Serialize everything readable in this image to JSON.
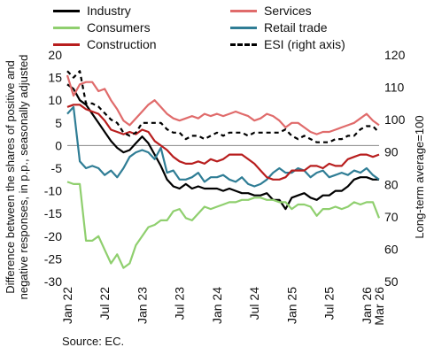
{
  "chart_data": {
    "type": "line",
    "source": "Source: EC.",
    "ylabel_left": "Difference between the shares of positive and negative responses, in p.p., seasonally adjusted",
    "ylabel_right": "Long-term average=100",
    "yleft": {
      "min": -30,
      "max": 20,
      "ticks": [
        -30,
        -25,
        -20,
        -15,
        -10,
        -5,
        0,
        5,
        10,
        15,
        20
      ]
    },
    "yright": {
      "min": 50,
      "max": 120,
      "ticks": [
        50,
        60,
        70,
        80,
        90,
        100,
        110,
        120
      ]
    },
    "x_tick_labels": [
      "Jan 22",
      "Jul 22",
      "Jan 23",
      "Jul 23",
      "Jan 24",
      "Jul 24",
      "Jan 25",
      "Jul 25",
      "Jan 26",
      "Mar 26"
    ],
    "x_tick_index": [
      0,
      6,
      12,
      18,
      24,
      30,
      36,
      42,
      48,
      50
    ],
    "grid": false,
    "legend_position": "top",
    "series": [
      {
        "name": "Industry",
        "axis": "left",
        "color": "#000000",
        "dash": "",
        "values": [
          13.5,
          12.5,
          10,
          9,
          7,
          5,
          3,
          1,
          -0.5,
          -1.5,
          -1,
          0.5,
          2,
          0.5,
          -2,
          -4.5,
          -7.5,
          -9,
          -9.5,
          -8.5,
          -9.5,
          -9,
          -9.5,
          -9.5,
          -9.5,
          -10,
          -9.5,
          -10,
          -10.5,
          -10.5,
          -11,
          -11,
          -10.5,
          -12,
          -12,
          -14,
          -11.5,
          -11,
          -10.5,
          -11.5,
          -12,
          -11,
          -11,
          -10,
          -10,
          -9,
          -7.5,
          -7,
          -7,
          -7.5,
          -7.5
        ]
      },
      {
        "name": "Services",
        "axis": "left",
        "color": "#e06b6b",
        "dash": "",
        "values": [
          15.5,
          11,
          13.5,
          14,
          14,
          12,
          12.5,
          10,
          8,
          5.5,
          4.5,
          6,
          7.5,
          9,
          10,
          8.5,
          7,
          6,
          5.5,
          6,
          6.5,
          6,
          7,
          6.5,
          7,
          6.5,
          7,
          7.5,
          7,
          6.5,
          5.5,
          6,
          7,
          6.5,
          5.5,
          4,
          5,
          5,
          4,
          3,
          2.5,
          3,
          3,
          3.5,
          4,
          4.5,
          5,
          6,
          7,
          5.5,
          4.5
        ]
      },
      {
        "name": "Consumers",
        "axis": "left",
        "color": "#8fcf6e",
        "dash": "",
        "values": [
          -8,
          -8.5,
          -8.5,
          -21,
          -21,
          -20,
          -23,
          -26,
          -24,
          -27,
          -26,
          -22,
          -20,
          -18,
          -17.5,
          -16.5,
          -16.5,
          -14.5,
          -14,
          -16,
          -16.5,
          -15,
          -13.5,
          -14,
          -13.5,
          -13,
          -12.5,
          -12.5,
          -12,
          -12,
          -11.5,
          -11.5,
          -12,
          -12,
          -12.5,
          -12.5,
          -14,
          -13,
          -13,
          -13.5,
          -15.5,
          -14,
          -14,
          -13.5,
          -14,
          -13.5,
          -12.5,
          -13,
          -12.5,
          -12.5,
          -16
        ]
      },
      {
        "name": "Retail trade",
        "axis": "left",
        "color": "#2f7d95",
        "dash": "",
        "values": [
          7,
          8.5,
          -3.5,
          -5,
          -4.5,
          -5,
          -6.5,
          -5.5,
          -7,
          -5,
          -2.5,
          -1.5,
          -1,
          -1.5,
          -3,
          -0.5,
          -6,
          -5.5,
          -7.5,
          -7.5,
          -7,
          -6,
          -8,
          -7,
          -7,
          -6.5,
          -7.5,
          -8,
          -7,
          -8.5,
          -9,
          -8.5,
          -7.5,
          -6,
          -5,
          -6,
          -6,
          -5,
          -5.5,
          -7,
          -6,
          -5.5,
          -7,
          -6.5,
          -6,
          -6.5,
          -5.5,
          -6,
          -5,
          -6.5,
          -7.5
        ]
      },
      {
        "name": "Construction",
        "axis": "left",
        "color": "#b81e1e",
        "dash": "",
        "values": [
          8.5,
          9,
          9,
          8,
          7.5,
          7,
          5.5,
          3.5,
          3,
          2.5,
          3,
          2.5,
          3.5,
          3,
          1,
          0,
          -1,
          -2.5,
          -3.5,
          -4,
          -4,
          -3.5,
          -4,
          -3,
          -3.5,
          -3,
          -2,
          -2,
          -2,
          -3,
          -4,
          -5.5,
          -7,
          -7.5,
          -7.5,
          -7,
          -5.5,
          -5.5,
          -5.5,
          -4.5,
          -4.5,
          -5,
          -4,
          -4.5,
          -4.5,
          -3,
          -2.5,
          -2,
          -2,
          -2.5,
          -2
        ]
      },
      {
        "name": "ESI (right axis)",
        "axis": "right",
        "color": "#000000",
        "dash": "5,4",
        "values": [
          115,
          113,
          115,
          105,
          105,
          104,
          102,
          100,
          99,
          96,
          95,
          96,
          99,
          99,
          99,
          99,
          97,
          96,
          96,
          94,
          95,
          95,
          94,
          95,
          96,
          95,
          96,
          96,
          96,
          95,
          96,
          96,
          96,
          96,
          96,
          97,
          95,
          94,
          95,
          94,
          93,
          93,
          93,
          94,
          94,
          95,
          95,
          97,
          98,
          98,
          96
        ]
      }
    ]
  }
}
